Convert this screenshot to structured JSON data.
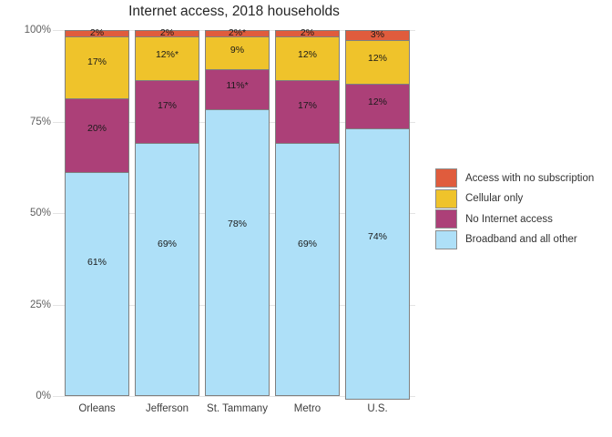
{
  "chart_data": {
    "type": "bar",
    "stacked": true,
    "title": "Internet access, 2018 households",
    "categories": [
      "Orleans",
      "Jefferson",
      "St. Tammany",
      "Metro",
      "U.S."
    ],
    "series": [
      {
        "name": "Access with no subscription",
        "color": "#E05C3D",
        "values": [
          2,
          2,
          2,
          2,
          3
        ],
        "labels": [
          "2%",
          "2%",
          "2%*",
          "2%",
          "3%"
        ]
      },
      {
        "name": "Cellular only",
        "color": "#EFC32B",
        "values": [
          17,
          12,
          9,
          12,
          12
        ],
        "labels": [
          "17%",
          "12%*",
          "9%",
          "12%",
          "12%"
        ]
      },
      {
        "name": "No Internet access",
        "color": "#AC4078",
        "values": [
          20,
          17,
          11,
          17,
          12
        ],
        "labels": [
          "20%",
          "17%",
          "11%*",
          "17%",
          "12%"
        ]
      },
      {
        "name": "Broadband and all other",
        "color": "#AEE0F8",
        "values": [
          61,
          69,
          78,
          69,
          74
        ],
        "labels": [
          "61%",
          "69%",
          "78%",
          "69%",
          "74%"
        ]
      }
    ],
    "y_axis": {
      "min": 0,
      "max": 100,
      "ticks": [
        "100%",
        "75%",
        "50%",
        "25%",
        "0%"
      ],
      "tick_values": [
        100,
        75,
        50,
        25,
        0
      ]
    },
    "legend_position": "right",
    "grid": true
  },
  "colors": {
    "access_with_no_subscription": "#E05C3D",
    "cellular_only": "#EFC32B",
    "no_internet_access": "#AC4078",
    "broadband_and_all_other": "#AEE0F8",
    "segment_border": "#7f7f7f",
    "gridline": "#e4e4e4"
  }
}
